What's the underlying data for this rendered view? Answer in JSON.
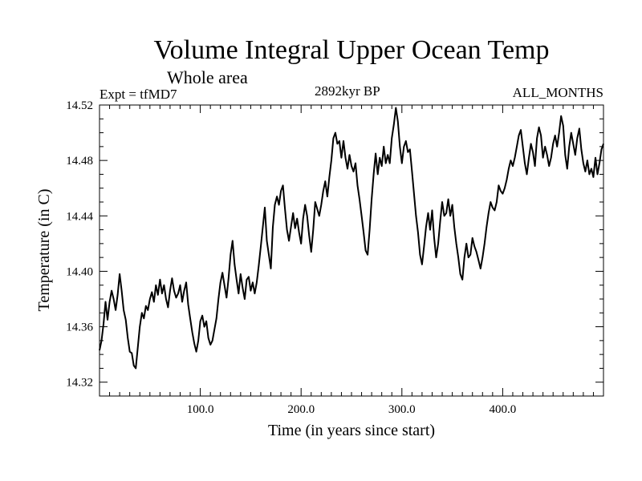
{
  "chart_data": {
    "type": "line",
    "title": "Volume Integral Upper Ocean Temp",
    "subtitle": "Whole area",
    "annotations": {
      "left": "Expt = tfMD7",
      "center": "2892kyr BP",
      "right": "ALL_MONTHS"
    },
    "xlabel": "Time (in years since start)",
    "ylabel": "Temperature (in C)",
    "xlim": [
      0,
      500
    ],
    "ylim": [
      14.31,
      14.52
    ],
    "x_ticks": [
      100,
      200,
      300,
      400
    ],
    "x_tick_labels": [
      "100.0",
      "200.0",
      "300.0",
      "400.0"
    ],
    "y_ticks": [
      14.32,
      14.36,
      14.4,
      14.44,
      14.48,
      14.52
    ],
    "y_tick_labels": [
      "14.32",
      "14.36",
      "14.40",
      "14.44",
      "14.48",
      "14.52"
    ],
    "grid": false,
    "series": [
      {
        "name": "Volume integral upper ocean temperature",
        "points": [
          [
            0,
            14.343
          ],
          [
            2,
            14.35
          ],
          [
            4,
            14.362
          ],
          [
            6,
            14.378
          ],
          [
            8,
            14.365
          ],
          [
            10,
            14.378
          ],
          [
            12,
            14.386
          ],
          [
            14,
            14.38
          ],
          [
            16,
            14.372
          ],
          [
            18,
            14.383
          ],
          [
            20,
            14.398
          ],
          [
            22,
            14.386
          ],
          [
            24,
            14.372
          ],
          [
            26,
            14.365
          ],
          [
            28,
            14.352
          ],
          [
            30,
            14.342
          ],
          [
            32,
            14.341
          ],
          [
            34,
            14.332
          ],
          [
            36,
            14.33
          ],
          [
            38,
            14.345
          ],
          [
            40,
            14.36
          ],
          [
            42,
            14.37
          ],
          [
            44,
            14.366
          ],
          [
            46,
            14.375
          ],
          [
            48,
            14.372
          ],
          [
            50,
            14.38
          ],
          [
            52,
            14.385
          ],
          [
            54,
            14.378
          ],
          [
            56,
            14.39
          ],
          [
            58,
            14.383
          ],
          [
            60,
            14.394
          ],
          [
            62,
            14.384
          ],
          [
            64,
            14.39
          ],
          [
            66,
            14.38
          ],
          [
            68,
            14.374
          ],
          [
            70,
            14.386
          ],
          [
            72,
            14.395
          ],
          [
            74,
            14.386
          ],
          [
            76,
            14.381
          ],
          [
            78,
            14.384
          ],
          [
            80,
            14.39
          ],
          [
            82,
            14.378
          ],
          [
            84,
            14.386
          ],
          [
            86,
            14.392
          ],
          [
            88,
            14.376
          ],
          [
            90,
            14.366
          ],
          [
            92,
            14.356
          ],
          [
            94,
            14.348
          ],
          [
            96,
            14.342
          ],
          [
            98,
            14.35
          ],
          [
            100,
            14.364
          ],
          [
            102,
            14.368
          ],
          [
            104,
            14.36
          ],
          [
            106,
            14.364
          ],
          [
            108,
            14.352
          ],
          [
            110,
            14.347
          ],
          [
            112,
            14.35
          ],
          [
            114,
            14.358
          ],
          [
            116,
            14.366
          ],
          [
            118,
            14.38
          ],
          [
            120,
            14.392
          ],
          [
            122,
            14.399
          ],
          [
            124,
            14.39
          ],
          [
            126,
            14.381
          ],
          [
            128,
            14.395
          ],
          [
            130,
            14.412
          ],
          [
            132,
            14.422
          ],
          [
            134,
            14.405
          ],
          [
            136,
            14.394
          ],
          [
            138,
            14.384
          ],
          [
            140,
            14.398
          ],
          [
            142,
            14.388
          ],
          [
            144,
            14.38
          ],
          [
            146,
            14.394
          ],
          [
            148,
            14.396
          ],
          [
            150,
            14.386
          ],
          [
            152,
            14.392
          ],
          [
            154,
            14.384
          ],
          [
            156,
            14.392
          ],
          [
            158,
            14.404
          ],
          [
            160,
            14.418
          ],
          [
            162,
            14.432
          ],
          [
            164,
            14.446
          ],
          [
            166,
            14.422
          ],
          [
            168,
            14.412
          ],
          [
            170,
            14.402
          ],
          [
            172,
            14.432
          ],
          [
            174,
            14.448
          ],
          [
            176,
            14.454
          ],
          [
            178,
            14.448
          ],
          [
            180,
            14.458
          ],
          [
            182,
            14.462
          ],
          [
            184,
            14.445
          ],
          [
            186,
            14.43
          ],
          [
            188,
            14.422
          ],
          [
            190,
            14.432
          ],
          [
            192,
            14.442
          ],
          [
            194,
            14.431
          ],
          [
            196,
            14.438
          ],
          [
            198,
            14.428
          ],
          [
            200,
            14.42
          ],
          [
            202,
            14.438
          ],
          [
            204,
            14.448
          ],
          [
            206,
            14.44
          ],
          [
            208,
            14.426
          ],
          [
            210,
            14.414
          ],
          [
            212,
            14.43
          ],
          [
            214,
            14.45
          ],
          [
            216,
            14.445
          ],
          [
            218,
            14.44
          ],
          [
            220,
            14.448
          ],
          [
            222,
            14.458
          ],
          [
            224,
            14.465
          ],
          [
            226,
            14.454
          ],
          [
            228,
            14.468
          ],
          [
            230,
            14.48
          ],
          [
            232,
            14.496
          ],
          [
            234,
            14.5
          ],
          [
            236,
            14.492
          ],
          [
            238,
            14.494
          ],
          [
            240,
            14.482
          ],
          [
            242,
            14.494
          ],
          [
            244,
            14.482
          ],
          [
            246,
            14.474
          ],
          [
            248,
            14.484
          ],
          [
            250,
            14.476
          ],
          [
            252,
            14.472
          ],
          [
            254,
            14.478
          ],
          [
            256,
            14.462
          ],
          [
            258,
            14.452
          ],
          [
            260,
            14.44
          ],
          [
            262,
            14.428
          ],
          [
            264,
            14.415
          ],
          [
            266,
            14.412
          ],
          [
            268,
            14.43
          ],
          [
            270,
            14.452
          ],
          [
            272,
            14.47
          ],
          [
            274,
            14.485
          ],
          [
            276,
            14.47
          ],
          [
            278,
            14.482
          ],
          [
            280,
            14.476
          ],
          [
            282,
            14.49
          ],
          [
            284,
            14.478
          ],
          [
            286,
            14.484
          ],
          [
            288,
            14.478
          ],
          [
            290,
            14.496
          ],
          [
            292,
            14.506
          ],
          [
            294,
            14.518
          ],
          [
            296,
            14.508
          ],
          [
            298,
            14.49
          ],
          [
            300,
            14.478
          ],
          [
            302,
            14.49
          ],
          [
            304,
            14.494
          ],
          [
            306,
            14.486
          ],
          [
            308,
            14.488
          ],
          [
            310,
            14.472
          ],
          [
            312,
            14.456
          ],
          [
            314,
            14.44
          ],
          [
            316,
            14.428
          ],
          [
            318,
            14.412
          ],
          [
            320,
            14.405
          ],
          [
            322,
            14.418
          ],
          [
            324,
            14.432
          ],
          [
            326,
            14.442
          ],
          [
            328,
            14.43
          ],
          [
            330,
            14.444
          ],
          [
            332,
            14.424
          ],
          [
            334,
            14.41
          ],
          [
            336,
            14.42
          ],
          [
            338,
            14.436
          ],
          [
            340,
            14.45
          ],
          [
            342,
            14.44
          ],
          [
            344,
            14.442
          ],
          [
            346,
            14.452
          ],
          [
            348,
            14.44
          ],
          [
            350,
            14.448
          ],
          [
            352,
            14.432
          ],
          [
            354,
            14.42
          ],
          [
            356,
            14.41
          ],
          [
            358,
            14.398
          ],
          [
            360,
            14.394
          ],
          [
            362,
            14.41
          ],
          [
            364,
            14.42
          ],
          [
            366,
            14.41
          ],
          [
            368,
            14.412
          ],
          [
            370,
            14.424
          ],
          [
            372,
            14.418
          ],
          [
            374,
            14.414
          ],
          [
            376,
            14.408
          ],
          [
            378,
            14.402
          ],
          [
            380,
            14.41
          ],
          [
            382,
            14.42
          ],
          [
            384,
            14.432
          ],
          [
            386,
            14.442
          ],
          [
            388,
            14.45
          ],
          [
            390,
            14.446
          ],
          [
            392,
            14.444
          ],
          [
            394,
            14.45
          ],
          [
            396,
            14.462
          ],
          [
            398,
            14.458
          ],
          [
            400,
            14.456
          ],
          [
            402,
            14.46
          ],
          [
            404,
            14.466
          ],
          [
            406,
            14.474
          ],
          [
            408,
            14.48
          ],
          [
            410,
            14.476
          ],
          [
            412,
            14.482
          ],
          [
            414,
            14.49
          ],
          [
            416,
            14.498
          ],
          [
            418,
            14.502
          ],
          [
            420,
            14.49
          ],
          [
            422,
            14.478
          ],
          [
            424,
            14.47
          ],
          [
            426,
            14.482
          ],
          [
            428,
            14.492
          ],
          [
            430,
            14.486
          ],
          [
            432,
            14.476
          ],
          [
            434,
            14.496
          ],
          [
            436,
            14.504
          ],
          [
            438,
            14.498
          ],
          [
            440,
            14.482
          ],
          [
            442,
            14.49
          ],
          [
            444,
            14.484
          ],
          [
            446,
            14.476
          ],
          [
            448,
            14.482
          ],
          [
            450,
            14.492
          ],
          [
            452,
            14.498
          ],
          [
            454,
            14.49
          ],
          [
            456,
            14.5
          ],
          [
            458,
            14.512
          ],
          [
            460,
            14.505
          ],
          [
            462,
            14.484
          ],
          [
            464,
            14.474
          ],
          [
            466,
            14.49
          ],
          [
            468,
            14.5
          ],
          [
            470,
            14.492
          ],
          [
            472,
            14.484
          ],
          [
            474,
            14.496
          ],
          [
            476,
            14.503
          ],
          [
            478,
            14.488
          ],
          [
            480,
            14.478
          ],
          [
            482,
            14.472
          ],
          [
            484,
            14.48
          ],
          [
            486,
            14.47
          ],
          [
            488,
            14.474
          ],
          [
            490,
            14.468
          ],
          [
            492,
            14.482
          ],
          [
            494,
            14.47
          ],
          [
            496,
            14.478
          ],
          [
            498,
            14.488
          ],
          [
            500,
            14.492
          ]
        ]
      }
    ]
  }
}
